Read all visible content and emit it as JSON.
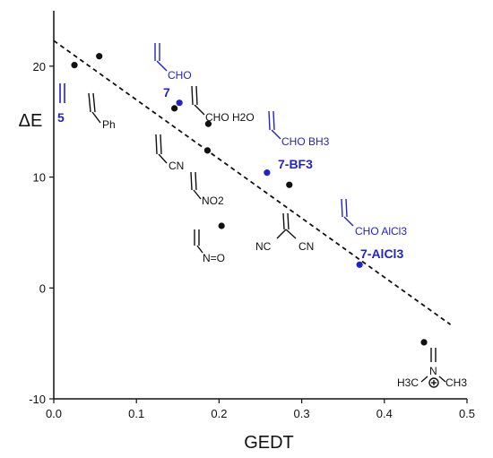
{
  "chart_data": {
    "type": "scatter",
    "title": "",
    "xlabel": "GEDT",
    "ylabel": "ΔE",
    "xlim": [
      0.0,
      0.5
    ],
    "ylim": [
      -10,
      25
    ],
    "xticks": [
      "0.0",
      "0.1",
      "0.2",
      "0.3",
      "0.4",
      "0.5"
    ],
    "yticks": [
      "-10",
      "0",
      "10",
      "20"
    ],
    "grid": false,
    "legend": "none",
    "colors": {
      "black": "#111111",
      "blue": "#2222cc"
    },
    "series": [
      {
        "color": "black",
        "points": [
          {
            "x": 0.025,
            "y": 20.1
          },
          {
            "x": 0.055,
            "y": 20.9
          },
          {
            "x": 0.146,
            "y": 16.2
          },
          {
            "x": 0.187,
            "y": 14.8
          },
          {
            "x": 0.186,
            "y": 12.4
          },
          {
            "x": 0.203,
            "y": 5.6
          },
          {
            "x": 0.285,
            "y": 9.3
          },
          {
            "x": 0.448,
            "y": -4.9
          }
        ]
      },
      {
        "color": "blue",
        "points": [
          {
            "x": 0.152,
            "y": 16.7
          },
          {
            "x": 0.258,
            "y": 10.4
          },
          {
            "x": 0.37,
            "y": 2.1
          }
        ]
      }
    ],
    "trendline": {
      "style": "dashed",
      "x": [
        0.0,
        0.48
      ],
      "y": [
        22.3,
        -3.3
      ]
    },
    "annotations": {
      "n5": "5",
      "ph": "Ph",
      "cho": "CHO",
      "n7": "7",
      "cho_h2o": "CHO H2O",
      "cn": "CN",
      "cho_bh3": "CHO BH3",
      "n7bf3": "7-BF3",
      "no2": "NO2",
      "nc": "NC",
      "cn2": "CN",
      "n_o": "N=O",
      "cho_alcl3": "CHO AlCl3",
      "n7alcl3": "7-AlCl3",
      "h3c": "H3C",
      "n_plus": "N",
      "ch3": "CH3"
    }
  }
}
